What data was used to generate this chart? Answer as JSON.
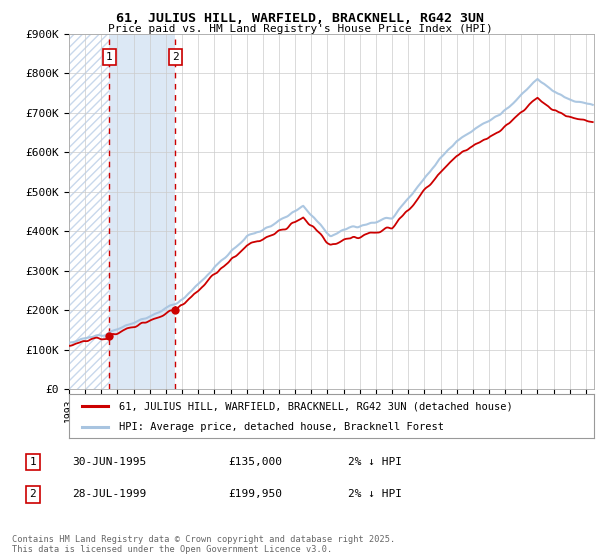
{
  "title": "61, JULIUS HILL, WARFIELD, BRACKNELL, RG42 3UN",
  "subtitle": "Price paid vs. HM Land Registry's House Price Index (HPI)",
  "xmin": 1993.0,
  "xmax": 2025.5,
  "ymin": 0,
  "ymax": 900000,
  "yticks": [
    0,
    100000,
    200000,
    300000,
    400000,
    500000,
    600000,
    700000,
    800000,
    900000
  ],
  "ytick_labels": [
    "£0",
    "£100K",
    "£200K",
    "£300K",
    "£400K",
    "£500K",
    "£600K",
    "£700K",
    "£800K",
    "£900K"
  ],
  "hpi_color": "#a8c4e0",
  "price_color": "#cc0000",
  "purchase1_date": 1995.5,
  "purchase1_price": 135000,
  "purchase2_date": 1999.58,
  "purchase2_price": 199950,
  "legend_line1": "61, JULIUS HILL, WARFIELD, BRACKNELL, RG42 3UN (detached house)",
  "legend_line2": "HPI: Average price, detached house, Bracknell Forest",
  "table_row1": [
    "1",
    "30-JUN-1995",
    "£135,000",
    "2% ↓ HPI"
  ],
  "table_row2": [
    "2",
    "28-JUL-1999",
    "£199,950",
    "2% ↓ HPI"
  ],
  "footer": "Contains HM Land Registry data © Crown copyright and database right 2025.\nThis data is licensed under the Open Government Licence v3.0.",
  "hatch_color": "#c8d8ec",
  "solid_blue_color": "#dce8f5"
}
